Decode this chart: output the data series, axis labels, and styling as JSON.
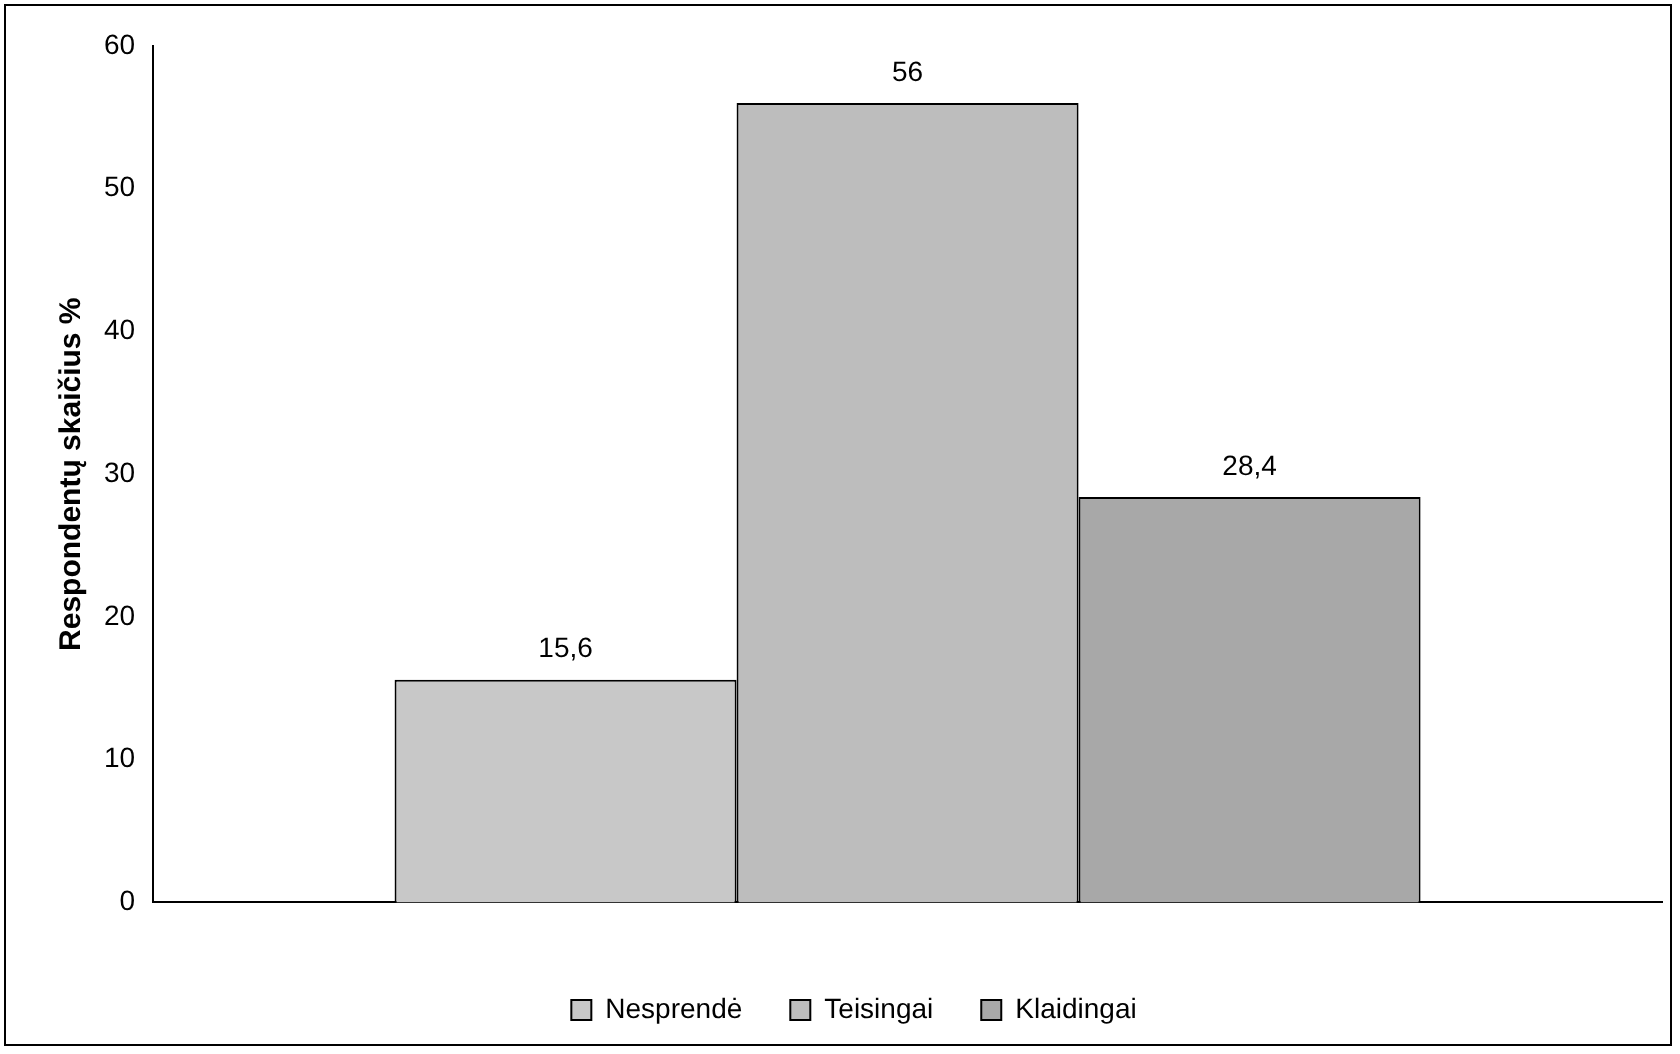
{
  "chart_data": {
    "type": "bar",
    "ylabel": "Respondentų skaičius %",
    "categories": [
      null
    ],
    "series": [
      {
        "name": "Nesprendė",
        "color": "#c8c8c8",
        "values": [
          15.6
        ],
        "value_labels": [
          "15,6"
        ]
      },
      {
        "name": "Teisingai",
        "color": "#bdbdbd",
        "values": [
          56
        ],
        "value_labels": [
          "56"
        ]
      },
      {
        "name": "Klaidingai",
        "color": "#a8a8a8",
        "values": [
          28.4
        ],
        "value_labels": [
          "28,4"
        ]
      }
    ],
    "ylim": [
      0,
      60
    ],
    "yticks": [
      0,
      10,
      20,
      30,
      40,
      50,
      60
    ],
    "grid": false,
    "legend": "bottom"
  }
}
